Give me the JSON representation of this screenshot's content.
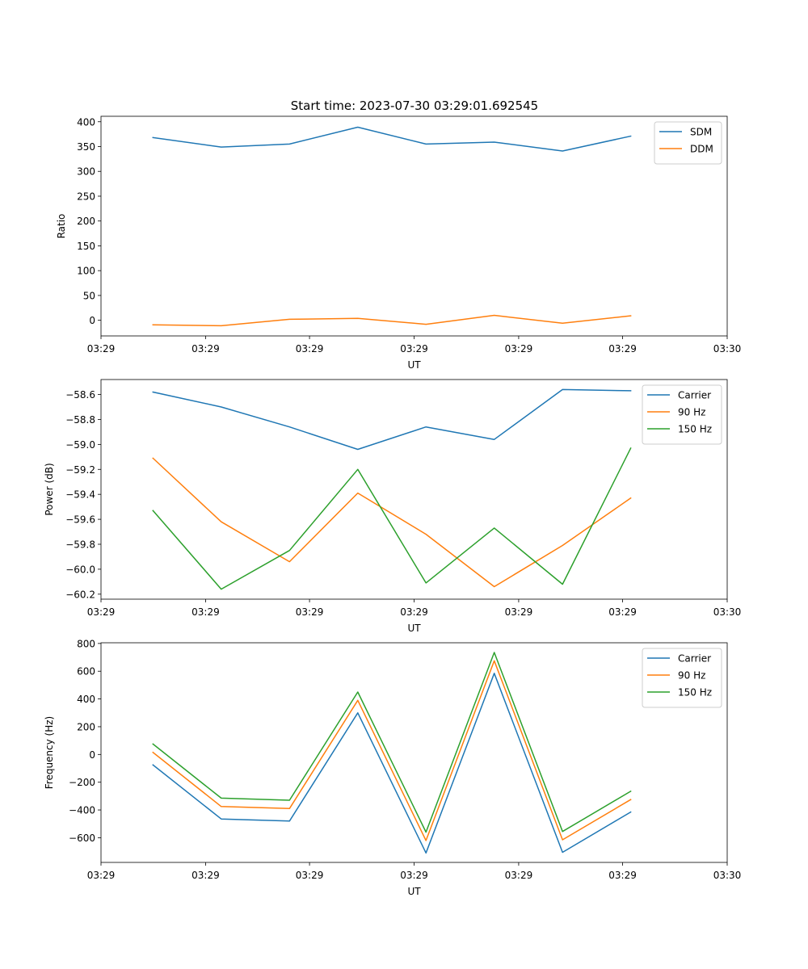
{
  "title": "Start time: 2023-07-30 03:29:01.692545",
  "chart_data": [
    {
      "type": "line",
      "xlabel": "UT",
      "ylabel": "Ratio",
      "xlim": [
        0,
        100
      ],
      "ylim": [
        -31.5,
        411
      ],
      "x_ticks": [
        {
          "value": 0,
          "label": "03:29"
        },
        {
          "value": 16.7,
          "label": "03:29"
        },
        {
          "value": 33.3,
          "label": "03:29"
        },
        {
          "value": 50,
          "label": "03:29"
        },
        {
          "value": 66.7,
          "label": "03:29"
        },
        {
          "value": 83.3,
          "label": "03:29"
        },
        {
          "value": 100,
          "label": "03:30"
        }
      ],
      "y_ticks": [
        {
          "value": 400,
          "label": "400"
        },
        {
          "value": 350,
          "label": "350"
        },
        {
          "value": 300,
          "label": "300"
        },
        {
          "value": 250,
          "label": "250"
        },
        {
          "value": 200,
          "label": "200"
        },
        {
          "value": 150,
          "label": "150"
        },
        {
          "value": 100,
          "label": "100"
        },
        {
          "value": 50,
          "label": "50"
        },
        {
          "value": 0,
          "label": "0"
        }
      ],
      "x": [
        8.3,
        19.2,
        30.1,
        41.0,
        51.9,
        62.8,
        73.7,
        84.6
      ],
      "legend": "top-right",
      "series": [
        {
          "name": "SDM",
          "color": "#1f77b4",
          "values": [
            368,
            349,
            355,
            389,
            355,
            359,
            341,
            371
          ]
        },
        {
          "name": "DDM",
          "color": "#ff7f0e",
          "values": [
            -9,
            -11,
            2,
            4,
            -8,
            10,
            -6,
            9
          ]
        }
      ]
    },
    {
      "type": "line",
      "xlabel": "UT",
      "ylabel": "Power (dB)",
      "xlim": [
        0,
        100
      ],
      "ylim": [
        -60.24,
        -58.48
      ],
      "x_ticks": [
        {
          "value": 0,
          "label": "03:29"
        },
        {
          "value": 16.7,
          "label": "03:29"
        },
        {
          "value": 33.3,
          "label": "03:29"
        },
        {
          "value": 50,
          "label": "03:29"
        },
        {
          "value": 66.7,
          "label": "03:29"
        },
        {
          "value": 83.3,
          "label": "03:29"
        },
        {
          "value": 100,
          "label": "03:30"
        }
      ],
      "y_ticks": [
        {
          "value": -58.6,
          "label": "−58.6"
        },
        {
          "value": -58.8,
          "label": "−58.8"
        },
        {
          "value": -59.0,
          "label": "−59.0"
        },
        {
          "value": -59.2,
          "label": "−59.2"
        },
        {
          "value": -59.4,
          "label": "−59.4"
        },
        {
          "value": -59.6,
          "label": "−59.6"
        },
        {
          "value": -59.8,
          "label": "−59.8"
        },
        {
          "value": -60.0,
          "label": "−60.0"
        },
        {
          "value": -60.2,
          "label": "−60.2"
        }
      ],
      "x": [
        8.3,
        19.2,
        30.1,
        41.0,
        51.9,
        62.8,
        73.7,
        84.6
      ],
      "legend": "top-right",
      "series": [
        {
          "name": "Carrier",
          "color": "#1f77b4",
          "values": [
            -58.58,
            -58.7,
            -58.86,
            -59.04,
            -58.86,
            -58.96,
            -58.56,
            -58.57
          ]
        },
        {
          "name": "90 Hz",
          "color": "#ff7f0e",
          "values": [
            -59.11,
            -59.62,
            -59.94,
            -59.39,
            -59.72,
            -60.14,
            -59.81,
            -59.43
          ]
        },
        {
          "name": "150 Hz",
          "color": "#2ca02c",
          "values": [
            -59.53,
            -60.16,
            -59.85,
            -59.2,
            -60.11,
            -59.67,
            -60.12,
            -59.03
          ]
        }
      ]
    },
    {
      "type": "line",
      "xlabel": "UT",
      "ylabel": "Frequency (Hz)",
      "xlim": [
        0,
        100
      ],
      "ylim": [
        -778,
        805
      ],
      "x_ticks": [
        {
          "value": 0,
          "label": "03:29"
        },
        {
          "value": 16.7,
          "label": "03:29"
        },
        {
          "value": 33.3,
          "label": "03:29"
        },
        {
          "value": 50,
          "label": "03:29"
        },
        {
          "value": 66.7,
          "label": "03:29"
        },
        {
          "value": 83.3,
          "label": "03:29"
        },
        {
          "value": 100,
          "label": "03:30"
        }
      ],
      "y_ticks": [
        {
          "value": 800,
          "label": "800"
        },
        {
          "value": 600,
          "label": "600"
        },
        {
          "value": 400,
          "label": "400"
        },
        {
          "value": 200,
          "label": "200"
        },
        {
          "value": 0,
          "label": "0"
        },
        {
          "value": -200,
          "label": "−200"
        },
        {
          "value": -400,
          "label": "−400"
        },
        {
          "value": -600,
          "label": "−600"
        }
      ],
      "x": [
        8.3,
        19.2,
        30.1,
        41.0,
        51.9,
        62.8,
        73.7,
        84.6
      ],
      "legend": "top-right",
      "series": [
        {
          "name": "Carrier",
          "color": "#1f77b4",
          "values": [
            -75,
            -465,
            -480,
            300,
            -710,
            585,
            -705,
            -415
          ]
        },
        {
          "name": "90 Hz",
          "color": "#ff7f0e",
          "values": [
            15,
            -375,
            -390,
            390,
            -620,
            675,
            -615,
            -325
          ]
        },
        {
          "name": "150 Hz",
          "color": "#2ca02c",
          "values": [
            75,
            -315,
            -330,
            450,
            -560,
            735,
            -555,
            -265
          ]
        }
      ]
    }
  ]
}
